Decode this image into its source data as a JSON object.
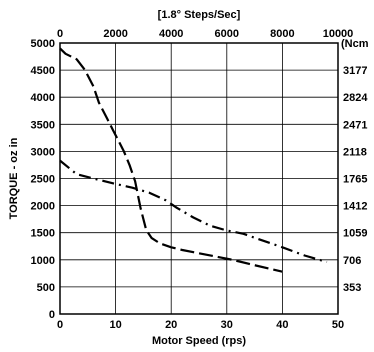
{
  "chart_data": {
    "type": "line",
    "title": "",
    "xlabel": "Motor Speed (rps)",
    "ylabel": "TORQUE - oz in",
    "x2label": "[1.8° Steps/Sec]",
    "y2unit": "(Ncm",
    "xlim": [
      0,
      50
    ],
    "ylim": [
      0,
      5000
    ],
    "x_ticks": [
      0,
      10,
      20,
      30,
      40,
      50
    ],
    "x_tick_labels": [
      "0",
      "10",
      "20",
      "30",
      "40",
      "50"
    ],
    "y_ticks": [
      0,
      500,
      1000,
      1500,
      2000,
      2500,
      3000,
      3500,
      4000,
      4500,
      5000
    ],
    "y_tick_labels": [
      "0",
      "500",
      "1000",
      "1500",
      "2000",
      "2500",
      "3000",
      "3500",
      "4000",
      "4500",
      "5000"
    ],
    "x2_ticks": [
      0,
      10,
      20,
      30,
      40,
      50
    ],
    "x2_tick_labels": [
      "0",
      "2000",
      "4000",
      "6000",
      "8000",
      "10000"
    ],
    "y2_ticks": [
      500,
      1000,
      1500,
      2000,
      2500,
      3000,
      3500,
      4000,
      4500
    ],
    "y2_tick_labels": [
      "353",
      "706",
      "1059",
      "1412",
      "1765",
      "2118",
      "2471",
      "2824",
      "3177"
    ],
    "grid": true,
    "colors": {
      "line": "#000000",
      "grid": "#000000",
      "background": "#ffffff"
    },
    "series": [
      {
        "style": "dashed",
        "x": [
          0,
          1,
          3,
          4.5,
          6,
          7,
          8.5,
          9.5,
          10.5,
          11.5,
          12.5,
          13.5,
          14.5,
          15.5,
          16.5,
          18,
          20,
          22,
          25,
          28,
          31,
          35,
          40
        ],
        "y": [
          4900,
          4800,
          4700,
          4500,
          4200,
          3900,
          3600,
          3400,
          3200,
          3000,
          2750,
          2450,
          1950,
          1550,
          1400,
          1300,
          1230,
          1180,
          1120,
          1060,
          1000,
          900,
          780
        ]
      },
      {
        "style": "dash-dot",
        "x": [
          0,
          3,
          6,
          10,
          13,
          16,
          19,
          21,
          24,
          27,
          30,
          33,
          36,
          40,
          44,
          48
        ],
        "y": [
          2830,
          2580,
          2500,
          2400,
          2330,
          2240,
          2100,
          1960,
          1780,
          1630,
          1540,
          1480,
          1370,
          1230,
          1080,
          960
        ]
      }
    ]
  }
}
